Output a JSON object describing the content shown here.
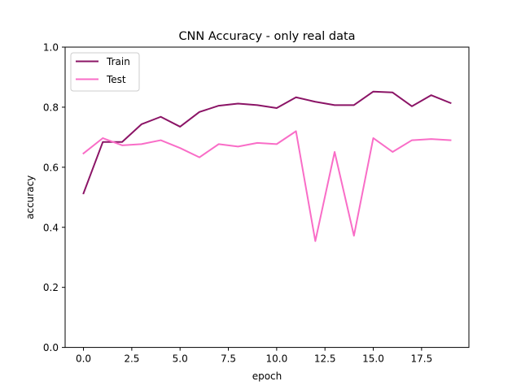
{
  "chart_data": {
    "type": "line",
    "title": "CNN Accuracy - only real data",
    "xlabel": "epoch",
    "ylabel": "accuracy",
    "xlim": [
      -0.95,
      19.95
    ],
    "ylim": [
      0.0,
      1.0
    ],
    "xticks": [
      0.0,
      2.5,
      5.0,
      7.5,
      10.0,
      12.5,
      15.0,
      17.5
    ],
    "xtick_labels": [
      "0.0",
      "2.5",
      "5.0",
      "7.5",
      "10.0",
      "12.5",
      "15.0",
      "17.5"
    ],
    "yticks": [
      0.0,
      0.2,
      0.4,
      0.6,
      0.8,
      1.0
    ],
    "ytick_labels": [
      "0.0",
      "0.2",
      "0.4",
      "0.6",
      "0.8",
      "1.0"
    ],
    "grid": false,
    "legend_position": "top-left",
    "x": [
      0,
      1,
      2,
      3,
      4,
      5,
      6,
      7,
      8,
      9,
      10,
      11,
      12,
      13,
      14,
      15,
      16,
      17,
      18,
      19
    ],
    "series": [
      {
        "name": "Train",
        "color": "#8b1466",
        "values": [
          0.513,
          0.684,
          0.684,
          0.743,
          0.768,
          0.735,
          0.784,
          0.805,
          0.812,
          0.807,
          0.797,
          0.833,
          0.818,
          0.807,
          0.807,
          0.852,
          0.849,
          0.803,
          0.84,
          0.814
        ]
      },
      {
        "name": "Test",
        "color": "#f96dc7",
        "values": [
          0.646,
          0.697,
          0.673,
          0.677,
          0.69,
          0.664,
          0.633,
          0.677,
          0.669,
          0.681,
          0.677,
          0.72,
          0.354,
          0.651,
          0.372,
          0.697,
          0.651,
          0.69,
          0.694,
          0.69
        ]
      }
    ]
  }
}
